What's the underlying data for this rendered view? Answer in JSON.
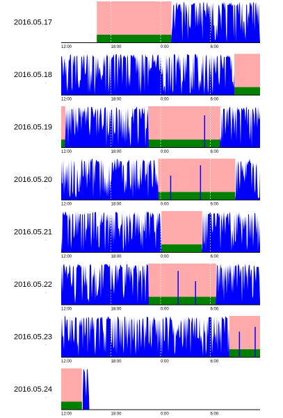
{
  "chart_data": {
    "type": "area",
    "x_tick_labels": [
      "12:00",
      "18:00",
      "0:00",
      "6:00"
    ],
    "x_range_hours": [
      12,
      36
    ],
    "colors": {
      "activity": "#0000ff",
      "sleep_window": "#ffaaaa",
      "sleep_bar": "#008000",
      "axis": "#000000",
      "tick_line": "#ffffff"
    },
    "legend": "none",
    "grid": false,
    "days": [
      {
        "date": "2016.05.17",
        "data_start": 17.3,
        "data_end": 36,
        "sleep": [
          [
            16.3,
            25.3
          ]
        ],
        "spikes": [
          28.0,
          29.3
        ],
        "seed": 17
      },
      {
        "date": "2016.05.18",
        "data_start": 12,
        "data_end": 32.9,
        "sleep": [
          [
            32.9,
            36
          ]
        ],
        "spikes": [],
        "seed": 18
      },
      {
        "date": "2016.05.19",
        "data_start": 12,
        "data_end": 36,
        "sleep": [
          [
            12,
            12.5
          ],
          [
            22.5,
            31.2
          ]
        ],
        "spikes": [
          29.3
        ],
        "seed": 19
      },
      {
        "date": "2016.05.20",
        "data_start": 12,
        "data_end": 36,
        "sleep": [
          [
            23.7,
            33.0
          ]
        ],
        "spikes": [
          28.8,
          25.2
        ],
        "seed": 20
      },
      {
        "date": "2016.05.21",
        "data_start": 12,
        "data_end": 36,
        "sleep": [
          [
            24.1,
            29.0
          ]
        ],
        "spikes": [],
        "seed": 21
      },
      {
        "date": "2016.05.22",
        "data_start": 12,
        "data_end": 36,
        "sleep": [
          [
            22.5,
            30.7
          ]
        ],
        "spikes": [
          26.1,
          28.2
        ],
        "seed": 22
      },
      {
        "date": "2016.05.23",
        "data_start": 12,
        "data_end": 36,
        "sleep": [
          [
            32.3,
            36
          ]
        ],
        "spikes": [
          33.5,
          35.4
        ],
        "seed": 23
      },
      {
        "date": "2016.05.24",
        "data_start": 14.6,
        "data_end": 15.4,
        "sleep": [
          [
            12,
            14.5
          ]
        ],
        "spikes": [],
        "seed": 24
      }
    ]
  }
}
